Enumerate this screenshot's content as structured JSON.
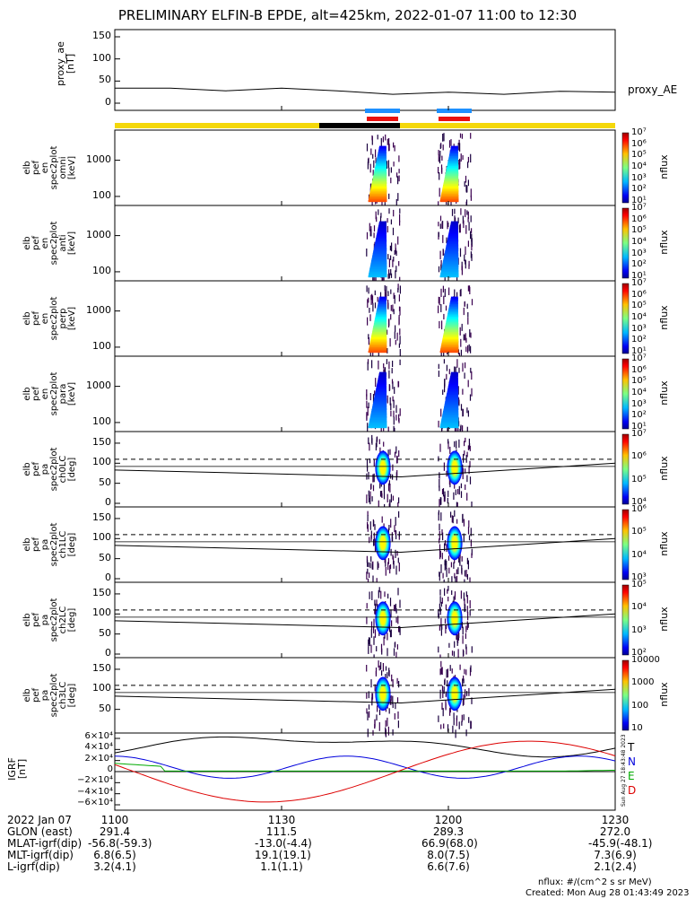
{
  "title": "PRELIMINARY ELFIN-B EPDE, alt=425km, 2022-01-07 11:00 to 12:30",
  "colors": {
    "blue_bar": "#1e90ff",
    "red_bar": "#e81010",
    "yellow_bar": "#f4d80a",
    "black_bar": "#000000",
    "bx": "#000000",
    "by": "#0000dd",
    "bz": "#00aa00",
    "bd": "#dd0000"
  },
  "chart_data": [
    {
      "type": "line",
      "ylabel": "proxy_ae\n[nT]",
      "yticks": [
        "150",
        "100",
        "50",
        "0"
      ],
      "ylim": [
        0,
        150
      ],
      "legend": "proxy_AE",
      "x_min": [
        0,
        10,
        20,
        30,
        40,
        50,
        60,
        70,
        80,
        90
      ],
      "series": [
        {
          "name": "proxy_AE",
          "values": [
            34,
            34,
            28,
            34,
            28,
            20,
            25,
            20,
            27,
            25
          ]
        }
      ]
    },
    {
      "type": "heatmap",
      "ylabel": "elb\npef\nen\nspec2plot\nomni\n[keV]",
      "yticks": [
        "1000",
        "100"
      ],
      "colorbar": {
        "ticks": [
          "10⁷",
          "10⁶",
          "10⁵",
          "10⁴",
          "10³",
          "10²",
          "10¹"
        ],
        "label": "nflux"
      }
    },
    {
      "type": "heatmap",
      "ylabel": "elb\npef\nen\nspec2plot\nanti\n[keV]",
      "yticks": [
        "1000",
        "100"
      ],
      "colorbar": {
        "ticks": [
          "10⁷",
          "10⁶",
          "10⁵",
          "10⁴",
          "10³",
          "10²",
          "10¹"
        ],
        "label": "nflux"
      }
    },
    {
      "type": "heatmap",
      "ylabel": "elb\npef\nen\nspec2plot\nperp\n[keV]",
      "yticks": [
        "1000",
        "100"
      ],
      "colorbar": {
        "ticks": [
          "10⁷",
          "10⁶",
          "10⁵",
          "10⁴",
          "10³",
          "10²",
          "10¹"
        ],
        "label": "nflux"
      }
    },
    {
      "type": "heatmap",
      "ylabel": "elb\npef\nen\nspec2plot\npara\n[keV]",
      "yticks": [
        "1000",
        "100"
      ],
      "colorbar": {
        "ticks": [
          "10⁷",
          "10⁶",
          "10⁵",
          "10⁴",
          "10³",
          "10²",
          "10¹"
        ],
        "label": "nflux"
      }
    },
    {
      "type": "heatmap",
      "ylabel": "elb\npef\npa\nspec2plot\nch0LC\n[deg]",
      "yticks": [
        "150",
        "100",
        "50",
        "0"
      ],
      "colorbar": {
        "ticks": [
          "10⁷",
          "10⁶",
          "10⁵",
          "10⁴"
        ],
        "label": "nflux"
      }
    },
    {
      "type": "heatmap",
      "ylabel": "elb\npef\npa\nspec2plot\nch1LC\n[deg]",
      "yticks": [
        "150",
        "100",
        "50",
        "0"
      ],
      "colorbar": {
        "ticks": [
          "10⁶",
          "10⁵",
          "10⁴",
          "10³"
        ],
        "label": "nflux"
      }
    },
    {
      "type": "heatmap",
      "ylabel": "elb\npef\npa\nspec2plot\nch2LC\n[deg]",
      "yticks": [
        "150",
        "100",
        "50",
        "0"
      ],
      "colorbar": {
        "ticks": [
          "10⁵",
          "10⁴",
          "10³",
          "10²"
        ],
        "label": "nflux"
      }
    },
    {
      "type": "heatmap",
      "ylabel": "elb\npef\npa\nspec2plot\nch3LC\n[deg]",
      "yticks": [
        "150",
        "100",
        "50"
      ],
      "colorbar": {
        "ticks": [
          "10000",
          "1000",
          "100",
          "10"
        ],
        "label": "nflux"
      }
    },
    {
      "type": "line",
      "ylabel": "IGRF\n[nT]",
      "yticks": [
        "6×10⁴",
        "4×10⁴",
        "2×10⁴",
        "0",
        "−2×10⁴",
        "−4×10⁴",
        "−6×10⁴"
      ],
      "ylim": [
        -60000,
        60000
      ],
      "legend": [
        "T",
        "N",
        "E",
        "D"
      ],
      "side_text": "Sun Aug 27 18:43:48 2023"
    }
  ],
  "footer": {
    "rows": [
      {
        "label": "2022 Jan 07",
        "cols": [
          "1100",
          "1130",
          "1200",
          "1230"
        ]
      },
      {
        "label": "GLON (east)",
        "cols": [
          "291.4",
          "111.5",
          "289.3",
          "272.0"
        ]
      },
      {
        "label": "MLAT-igrf(dip)",
        "cols": [
          "-56.8(-59.3)",
          "-13.0(-4.4)",
          "66.9(68.0)",
          "-45.9(-48.1)"
        ]
      },
      {
        "label": "MLT-igrf(dip)",
        "cols": [
          "6.8(6.5)",
          "19.1(19.1)",
          "8.0(7.5)",
          "7.3(6.9)"
        ]
      },
      {
        "label": "L-igrf(dip)",
        "cols": [
          "3.2(4.1)",
          "1.1(1.1)",
          "6.6(7.6)",
          "2.1(2.4)"
        ]
      }
    ],
    "units": "nflux: #/(cm^2 s sr MeV)",
    "created": "Created: Mon Aug 28 01:43:49 2023"
  }
}
